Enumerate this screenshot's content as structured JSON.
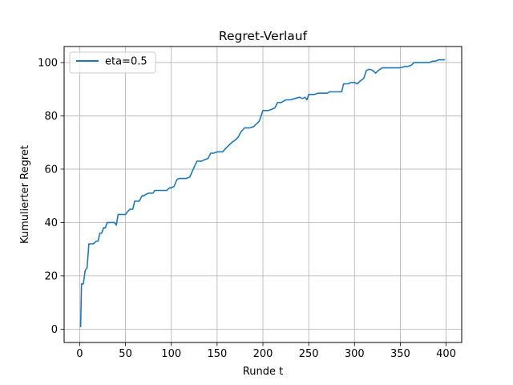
{
  "chart_data": {
    "type": "line",
    "title": "Regret-Verlauf",
    "xlabel": "Runde t",
    "ylabel": "Kumulierter Regret",
    "xlim": [
      -17,
      417
    ],
    "ylim": [
      -5,
      106
    ],
    "xticks": [
      0,
      50,
      100,
      150,
      200,
      250,
      300,
      350,
      400
    ],
    "yticks": [
      0,
      20,
      40,
      60,
      80,
      100
    ],
    "grid": true,
    "legend_position": "top-left",
    "series": [
      {
        "name": "eta=0.5",
        "color": "#1f77b4",
        "x": [
          1,
          2,
          4,
          6,
          8,
          10,
          12,
          15,
          18,
          20,
          22,
          24,
          26,
          28,
          30,
          32,
          35,
          38,
          40,
          42,
          45,
          48,
          50,
          52,
          55,
          58,
          60,
          62,
          65,
          68,
          70,
          72,
          75,
          78,
          80,
          82,
          85,
          88,
          90,
          92,
          95,
          98,
          100,
          103,
          106,
          108,
          110,
          113,
          116,
          120,
          124,
          128,
          130,
          133,
          136,
          140,
          143,
          146,
          150,
          153,
          156,
          160,
          163,
          166,
          170,
          173,
          176,
          180,
          183,
          186,
          190,
          193,
          196,
          200,
          203,
          206,
          210,
          213,
          216,
          220,
          225,
          230,
          235,
          240,
          243,
          246,
          248,
          250,
          253,
          256,
          260,
          263,
          266,
          270,
          273,
          276,
          280,
          283,
          286,
          288,
          290,
          293,
          296,
          300,
          303,
          306,
          310,
          313,
          316,
          320,
          323,
          326,
          330,
          335,
          340,
          345,
          350,
          355,
          358,
          362,
          365,
          368,
          372,
          375,
          378,
          382,
          385,
          388,
          392,
          395,
          398
        ],
        "y": [
          1,
          17,
          17,
          22,
          23,
          32,
          32,
          32,
          33,
          33,
          36,
          36,
          38,
          38,
          40,
          40,
          40,
          40,
          39,
          43,
          43,
          43,
          43,
          44,
          45,
          45,
          48,
          48,
          48,
          50,
          50,
          50.5,
          51,
          51,
          51,
          52,
          52,
          52,
          52,
          52,
          52,
          53,
          53,
          53.5,
          56,
          56.5,
          56.5,
          56.5,
          56.5,
          57,
          60,
          63,
          63,
          63,
          63.5,
          64,
          66,
          66,
          66.5,
          66.5,
          66.5,
          68,
          69,
          70,
          71,
          72,
          74,
          75.5,
          75.5,
          75.5,
          76,
          77,
          78,
          82,
          82,
          82,
          82.5,
          83,
          85,
          85,
          86,
          86,
          86.5,
          87,
          86.5,
          87,
          86,
          88,
          88,
          88,
          88.5,
          88.5,
          88.5,
          88.5,
          89,
          89,
          89,
          89,
          89,
          92,
          92,
          92,
          92.5,
          92.5,
          92,
          93,
          94,
          97,
          97.5,
          97,
          96,
          97,
          98,
          98,
          98,
          98,
          98,
          98.5,
          98.5,
          99,
          100,
          100,
          100,
          100,
          100,
          100,
          100.5,
          100.5,
          101,
          101,
          101
        ]
      }
    ]
  }
}
